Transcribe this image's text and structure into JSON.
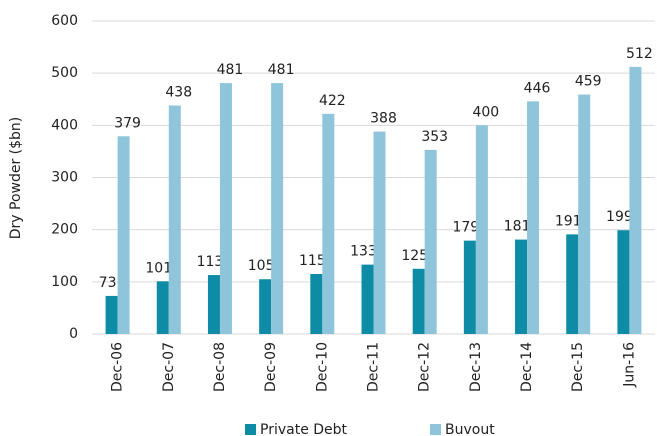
{
  "chart_data": {
    "type": "bar",
    "y_axis_label": "Dry Powder ($bn)",
    "categories": [
      "Dec-06",
      "Dec-07",
      "Dec-08",
      "Dec-09",
      "Dec-10",
      "Dec-11",
      "Dec-12",
      "Dec-13",
      "Dec-14",
      "Dec-15",
      "Jun-16"
    ],
    "series": [
      {
        "name": "Private Debt",
        "color": "#0f8ca5",
        "values": [
          73,
          101,
          113,
          105,
          115,
          133,
          125,
          179,
          181,
          191,
          199
        ]
      },
      {
        "name": "Buvout",
        "color": "#8ec5da",
        "values": [
          379,
          438,
          481,
          481,
          422,
          388,
          353,
          400,
          446,
          459,
          512
        ]
      }
    ],
    "ylim": [
      0,
      600
    ],
    "yticks": [
      0,
      100,
      200,
      300,
      400,
      500,
      600
    ],
    "grid": true,
    "legend": "bottom"
  }
}
